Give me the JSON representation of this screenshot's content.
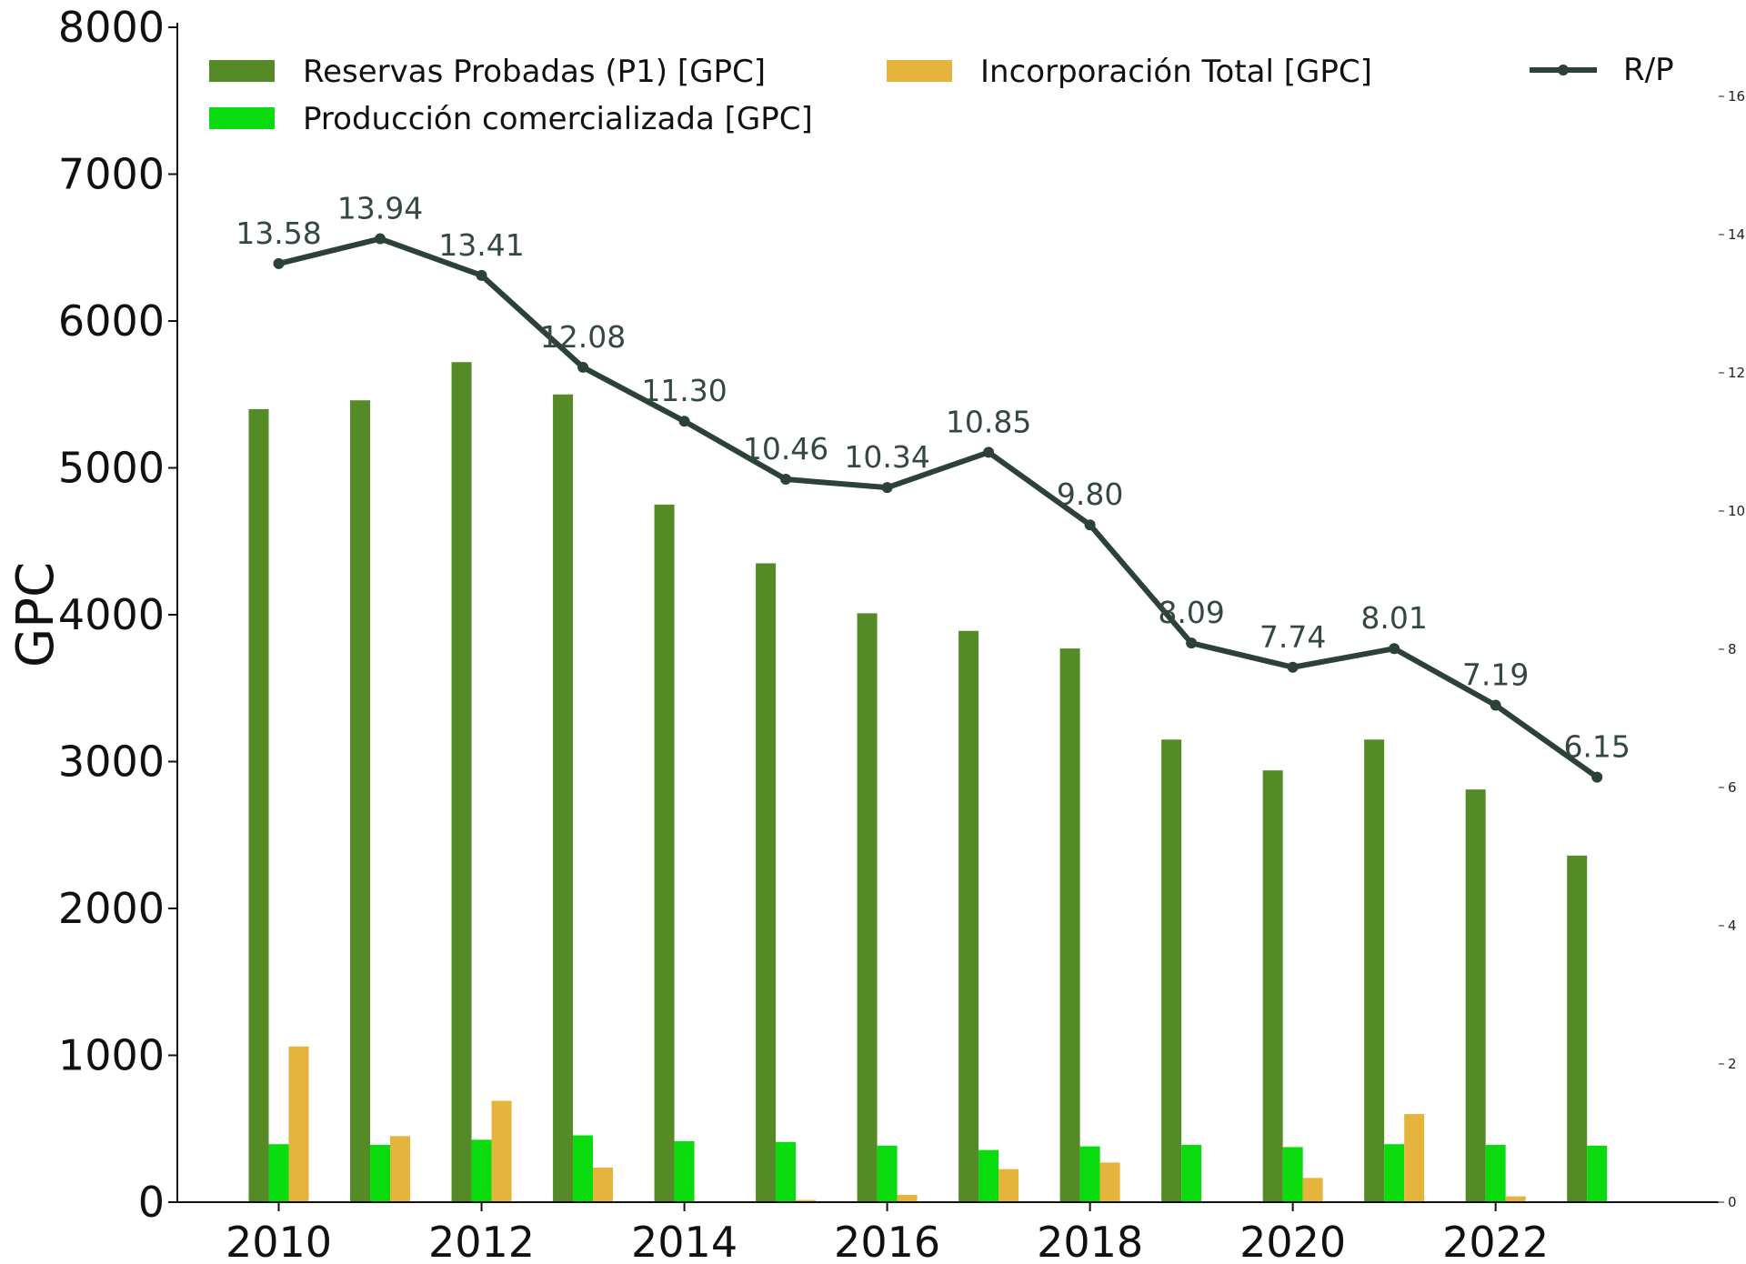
{
  "chart_data": {
    "type": "bar",
    "categories": [
      2010,
      2011,
      2012,
      2013,
      2014,
      2015,
      2016,
      2017,
      2018,
      2019,
      2020,
      2021,
      2022,
      2023
    ],
    "series": [
      {
        "name": "Reservas Probadas (P1) [GPC]",
        "kind": "bar",
        "axis": "left",
        "color": "#548b26",
        "values": [
          5400,
          5460,
          5720,
          5500,
          4750,
          4350,
          4010,
          3890,
          3770,
          3150,
          2940,
          3150,
          2810,
          2360
        ]
      },
      {
        "name": "Producción comercializada [GPC]",
        "kind": "bar",
        "axis": "left",
        "color": "#0adb0f",
        "values": [
          395,
          390,
          425,
          455,
          415,
          410,
          385,
          355,
          380,
          390,
          375,
          395,
          390,
          385
        ]
      },
      {
        "name": "Incorporación Total [GPC]",
        "kind": "bar",
        "axis": "left",
        "color": "#e5b43c",
        "values": [
          1060,
          450,
          690,
          235,
          0,
          15,
          50,
          225,
          270,
          0,
          165,
          600,
          40,
          0
        ]
      },
      {
        "name": "R/P",
        "kind": "line",
        "axis": "right",
        "color": "#2c4236",
        "values": [
          13.58,
          13.94,
          13.41,
          12.08,
          11.3,
          10.46,
          10.34,
          10.85,
          9.8,
          8.09,
          7.74,
          8.01,
          7.19,
          6.15
        ],
        "labels": [
          "13.58",
          "13.94",
          "13.41",
          "12.08",
          "11.30",
          "10.46",
          "10.34",
          "10.85",
          "9.80",
          "8.09",
          "7.74",
          "8.01",
          "7.19",
          "6.15"
        ]
      }
    ],
    "title": "",
    "xlabel": "",
    "ylabel": "GPC",
    "y2label": "",
    "ylim": [
      0,
      8000
    ],
    "y2lim": [
      0,
      17
    ],
    "xlim": [
      2009,
      2024.2
    ],
    "y_ticks": [
      "0",
      "1000",
      "2000",
      "3000",
      "4000",
      "5000",
      "6000",
      "7000",
      "8000"
    ],
    "y2_ticks": [
      "0",
      "2",
      "4",
      "6",
      "8",
      "10",
      "12",
      "14",
      "16"
    ],
    "x_ticks": [
      "2010",
      "2012",
      "2014",
      "2016",
      "2018",
      "2020",
      "2022"
    ],
    "legend_position": "top",
    "grid": false
  }
}
